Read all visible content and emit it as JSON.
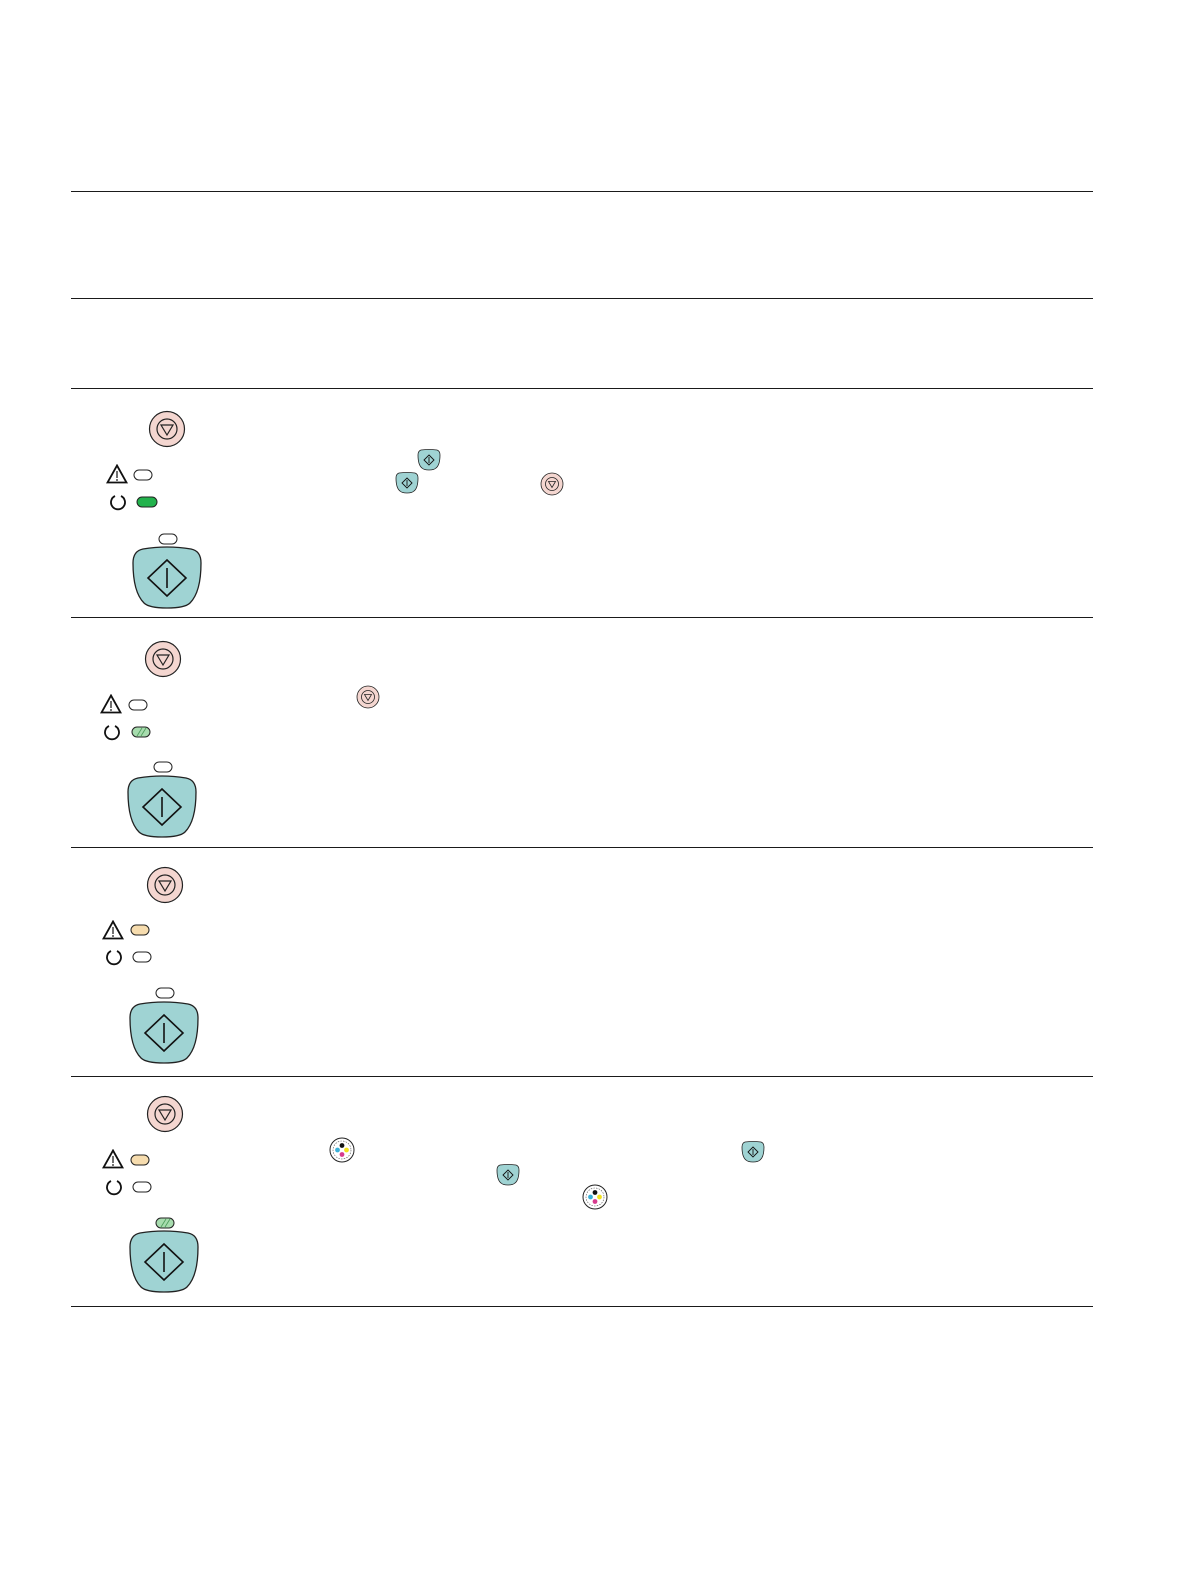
{
  "colors": {
    "rule": "#1a1a1a",
    "cancel_button_fill": "#f4d6d0",
    "start_button_fill": "#9fd3d3",
    "led_off": "#ffffff",
    "led_green_solid": "#22b24c",
    "led_green_blink": "#a7dcae",
    "led_amber": "#f6dcae"
  },
  "icon_names": {
    "cancel": "cancel-button-icon",
    "start": "start-button-icon",
    "warning": "warning-triangle-icon",
    "power": "power-icon",
    "cartridge": "cartridge-icon",
    "led": "led-indicator"
  },
  "rows": [
    {
      "warning_led": "off",
      "power_led": "green-solid",
      "start_led": "off"
    },
    {
      "warning_led": "off",
      "power_led": "green-blinking",
      "start_led": "off"
    },
    {
      "warning_led": "amber",
      "power_led": "off",
      "start_led": "off"
    },
    {
      "warning_led": "amber",
      "power_led": "off",
      "start_led": "green-blinking"
    }
  ]
}
